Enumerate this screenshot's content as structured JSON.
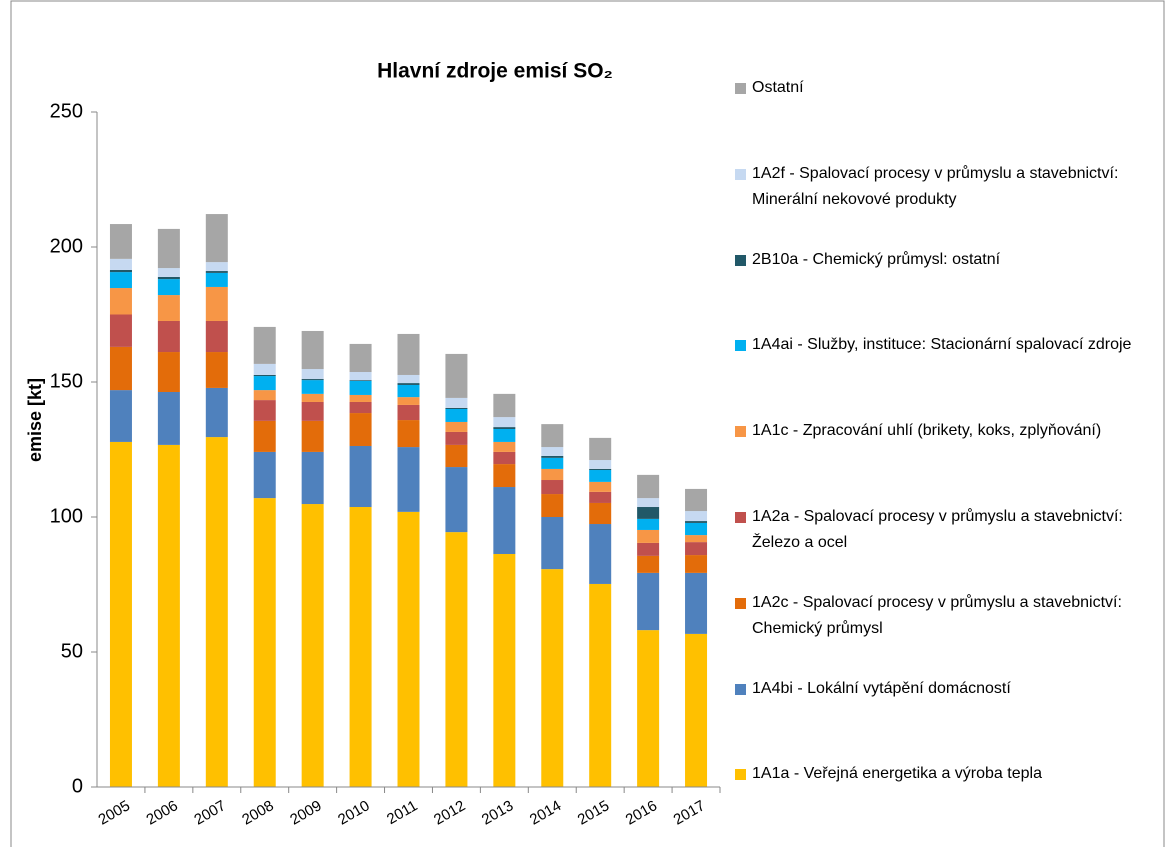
{
  "chart_data": {
    "type": "stacked_bar",
    "title": "Hlavní zdroje emisí SO₂",
    "y_label": "emise [kt]",
    "categories": [
      "2005",
      "2006",
      "2007",
      "2008",
      "2009",
      "2010",
      "2011",
      "2012",
      "2013",
      "2014",
      "2015",
      "2016",
      "2017"
    ],
    "ylim": [
      0,
      250
    ],
    "yticks": [
      0,
      50,
      100,
      150,
      200,
      250
    ],
    "grid": false,
    "legend": "right",
    "series": [
      {
        "name": "1A1a - Veřejná energetika a výroba tepla",
        "color": "#ffc000",
        "values": [
          127.8,
          126.7,
          129.6,
          107,
          104.8,
          103.7,
          101.9,
          94.4,
          86.3,
          80.7,
          75.2,
          58.1,
          56.7
        ]
      },
      {
        "name": "1A4bi - Lokální vytápění domácností",
        "color": "#4f81bd",
        "values": [
          19.2,
          19.6,
          18.2,
          17.1,
          19.3,
          22.6,
          24,
          24.1,
          24.8,
          19.3,
          22.2,
          21.2,
          22.6
        ]
      },
      {
        "name": "1A2c - Spalovací procesy v průmyslu a stavebnictví: Chemický průmysl",
        "color": "#e36c0a",
        "values": [
          16,
          14.8,
          13.3,
          11.5,
          11.5,
          12.2,
          10,
          8.2,
          8.5,
          8.5,
          7.8,
          6.3,
          6.6
        ]
      },
      {
        "name": "1A2a - Spalovací procesy v průmyslu a stavebnictví: Železo a ocel",
        "color": "#c0504d",
        "values": [
          12,
          11.5,
          11.5,
          7.7,
          7,
          4.1,
          5.6,
          4.8,
          4.5,
          5.2,
          4.1,
          4.8,
          4.8
        ]
      },
      {
        "name": "1A1c - Zpracování uhlí (brikety, koks, zplyňování)",
        "color": "#f79646",
        "values": [
          9.8,
          9.6,
          12.6,
          3.7,
          3,
          2.6,
          2.9,
          3.7,
          3.7,
          4.1,
          3.7,
          4.8,
          2.6
        ]
      },
      {
        "name": "1A4ai - Služby, instituce: Stacionární spalovací zdroje",
        "color": "#00b0f0",
        "values": [
          5.9,
          5.9,
          5.2,
          5.2,
          5.1,
          5.2,
          4.5,
          4.8,
          4.8,
          4.1,
          4.4,
          4.1,
          4.5
        ]
      },
      {
        "name": "2B10a - Chemický průmysl: ostatní",
        "color": "#215868",
        "values": [
          0.8,
          0.8,
          0.7,
          0.4,
          0.4,
          0.3,
          0.7,
          0.4,
          0.7,
          0.7,
          0.4,
          4.4,
          0.7
        ]
      },
      {
        "name": "1A2f - Spalovací procesy v průmyslu a stavebnictví: Minerální nekovové produkty",
        "color": "#c6d9f1",
        "values": [
          4.1,
          3.3,
          3.3,
          4.1,
          3.7,
          3,
          3,
          3.7,
          3.7,
          3.3,
          3.3,
          3.3,
          3.7
        ]
      },
      {
        "name": "Ostatní",
        "color": "#a6a6a6",
        "values": [
          12.9,
          14.5,
          17.8,
          13.7,
          14.1,
          10.4,
          15.2,
          16.3,
          8.6,
          8.5,
          8.2,
          8.6,
          8.2
        ]
      }
    ]
  }
}
